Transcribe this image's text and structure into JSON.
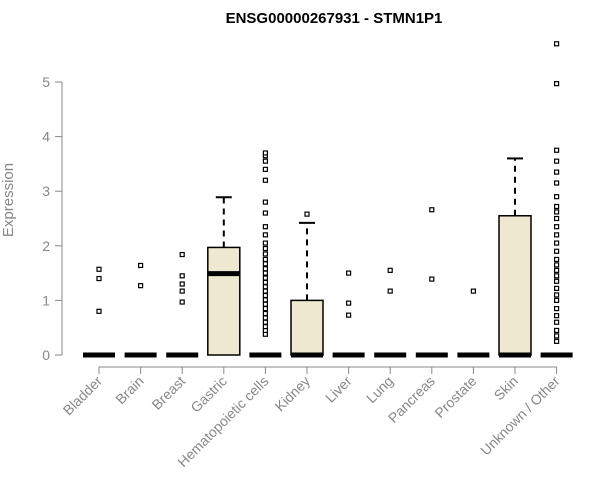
{
  "chart_data": {
    "type": "box",
    "title": "ENSG00000267931 - STMN1P1",
    "xlabel": "",
    "ylabel": "Expression",
    "ylim": [
      0,
      5.9
    ],
    "yticks": [
      "0",
      "1",
      "2",
      "3",
      "4",
      "5"
    ],
    "grid": false,
    "categories": [
      "Bladder",
      "Brain",
      "Breast",
      "Gastric",
      "Hematopoietic cells",
      "Kidney",
      "Liver",
      "Lung",
      "Pancreas",
      "Prostate",
      "Skin",
      "Unknown / Other"
    ],
    "box_fill": "#ede8cf",
    "series": [
      {
        "q1": 0,
        "median": 0,
        "q3": 0,
        "whisker_low": 0,
        "whisker_high": 0,
        "outliers": [
          0.8,
          1.4,
          1.57
        ]
      },
      {
        "q1": 0,
        "median": 0,
        "q3": 0,
        "whisker_low": 0,
        "whisker_high": 0,
        "outliers": [
          1.27,
          1.64
        ]
      },
      {
        "q1": 0,
        "median": 0,
        "q3": 0,
        "whisker_low": 0,
        "whisker_high": 0,
        "outliers": [
          0.97,
          1.17,
          1.3,
          1.45,
          1.84
        ]
      },
      {
        "q1": 0,
        "median": 1.49,
        "q3": 1.97,
        "whisker_low": 0,
        "whisker_high": 2.89,
        "outliers": []
      },
      {
        "q1": 0,
        "median": 0,
        "q3": 0,
        "whisker_low": 0,
        "whisker_high": 0,
        "outliers": [
          0.38,
          0.45,
          0.52,
          0.6,
          0.68,
          0.76,
          0.85,
          0.93,
          1.01,
          1.09,
          1.17,
          1.25,
          1.33,
          1.41,
          1.5,
          1.58,
          1.67,
          1.75,
          1.85,
          1.95,
          2.05,
          2.2,
          2.35,
          2.6,
          2.8,
          3.2,
          3.4,
          3.55,
          3.65,
          3.7
        ]
      },
      {
        "q1": 0,
        "median": 0,
        "q3": 1.0,
        "whisker_low": 0,
        "whisker_high": 2.42,
        "outliers": [
          2.58
        ]
      },
      {
        "q1": 0,
        "median": 0,
        "q3": 0,
        "whisker_low": 0,
        "whisker_high": 0,
        "outliers": [
          0.73,
          0.95,
          1.5
        ]
      },
      {
        "q1": 0,
        "median": 0,
        "q3": 0,
        "whisker_low": 0,
        "whisker_high": 0,
        "outliers": [
          1.17,
          1.55
        ]
      },
      {
        "q1": 0,
        "median": 0,
        "q3": 0,
        "whisker_low": 0,
        "whisker_high": 0,
        "outliers": [
          1.39,
          2.66
        ]
      },
      {
        "q1": 0,
        "median": 0,
        "q3": 0,
        "whisker_low": 0,
        "whisker_high": 0,
        "outliers": [
          1.17
        ]
      },
      {
        "q1": 0,
        "median": 0,
        "q3": 2.55,
        "whisker_low": 0,
        "whisker_high": 3.6,
        "outliers": []
      },
      {
        "q1": 0,
        "median": 0,
        "q3": 0,
        "whisker_low": 0,
        "whisker_high": 0,
        "outliers": [
          0.25,
          0.35,
          0.45,
          0.6,
          0.72,
          0.85,
          1.0,
          1.1,
          1.22,
          1.35,
          1.45,
          1.55,
          1.65,
          1.75,
          1.9,
          2.05,
          2.2,
          2.35,
          2.5,
          2.62,
          2.72,
          2.9,
          3.15,
          3.35,
          3.55,
          3.75,
          4.97,
          5.7
        ]
      }
    ]
  }
}
